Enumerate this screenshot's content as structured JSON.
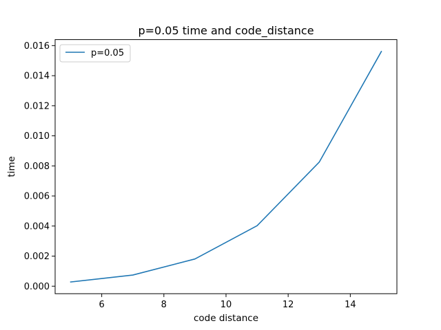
{
  "chart_data": {
    "type": "line",
    "title": "p=0.05 time and code_distance",
    "xlabel": "code distance",
    "ylabel": "time",
    "xlim": [
      4.5,
      15.5
    ],
    "ylim": [
      -0.0005,
      0.0164
    ],
    "x_ticks": [
      6,
      8,
      10,
      12,
      14
    ],
    "x_tick_labels": [
      "6",
      "8",
      "10",
      "12",
      "14"
    ],
    "y_ticks": [
      0.0,
      0.002,
      0.004,
      0.006,
      0.008,
      0.01,
      0.012,
      0.014,
      0.016
    ],
    "y_tick_labels": [
      "0.000",
      "0.002",
      "0.004",
      "0.006",
      "0.008",
      "0.010",
      "0.012",
      "0.014",
      "0.016"
    ],
    "grid": false,
    "legend_position": "upper-left",
    "series": [
      {
        "name": "p=0.05",
        "color": "#1f77b4",
        "x": [
          5,
          7,
          9,
          11,
          13,
          15
        ],
        "y": [
          0.00028,
          0.00074,
          0.00181,
          0.00402,
          0.00825,
          0.01561
        ]
      }
    ]
  }
}
